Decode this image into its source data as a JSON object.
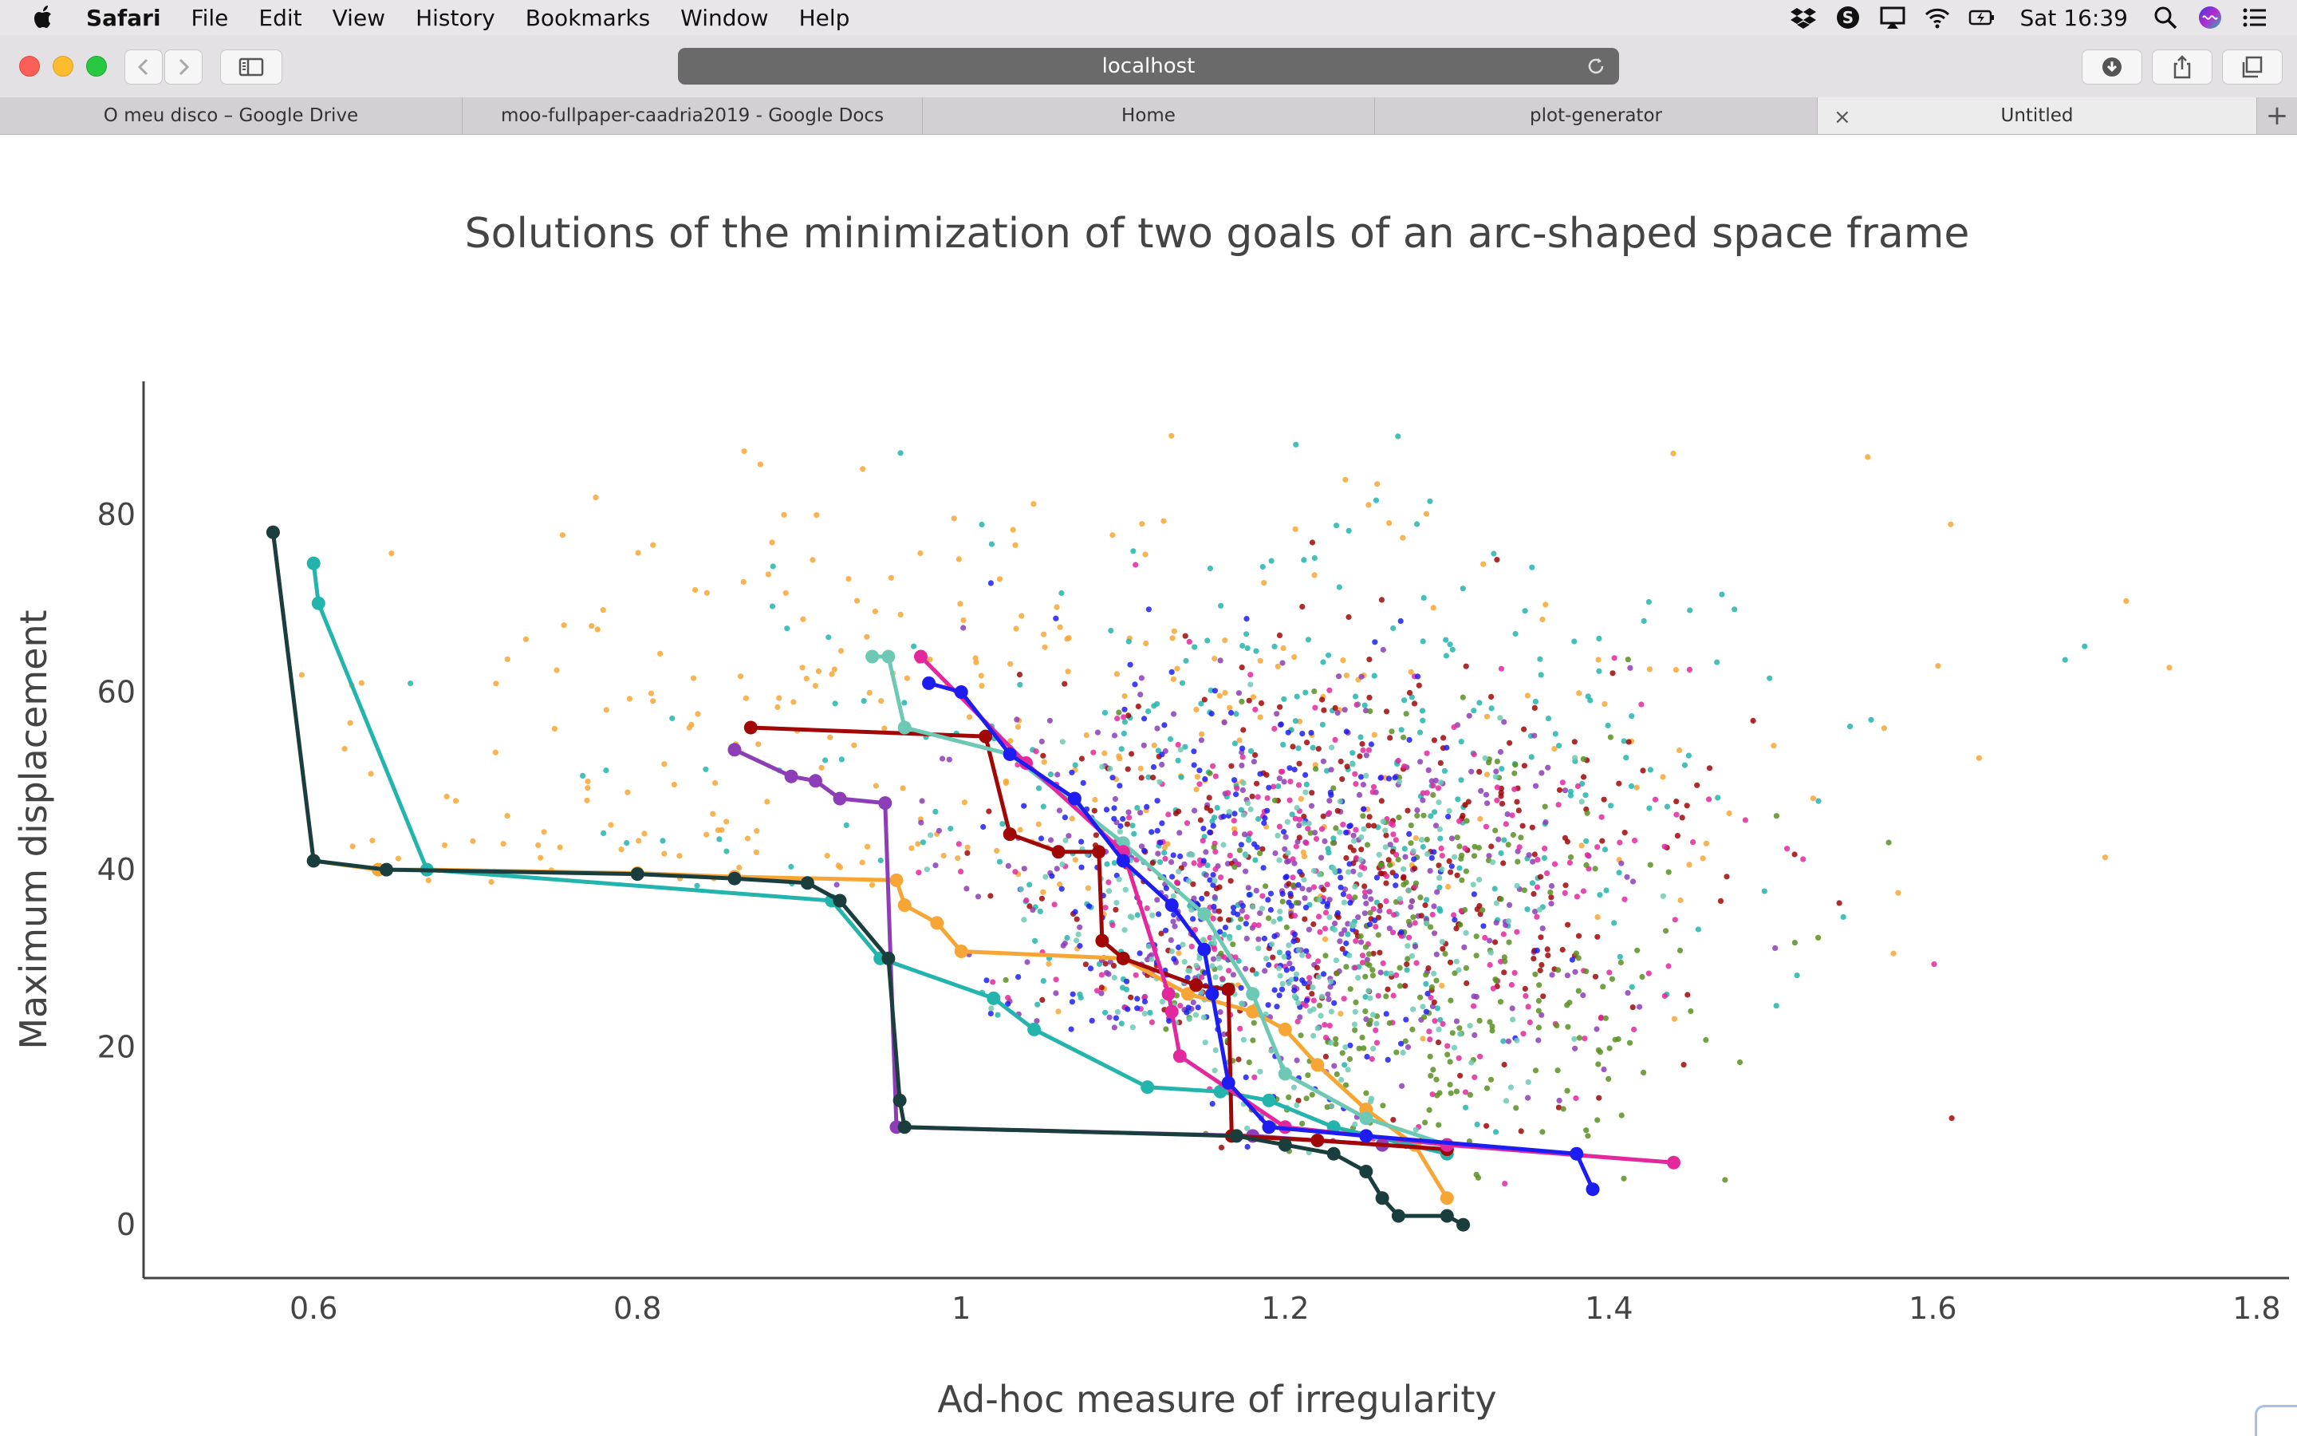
{
  "menubar": {
    "app": "Safari",
    "items": [
      "File",
      "Edit",
      "View",
      "History",
      "Bookmarks",
      "Window",
      "Help"
    ],
    "clock": "Sat 16:39",
    "status_icons": [
      "dropbox-icon",
      "skype-icon",
      "airplay-icon",
      "wifi-icon",
      "battery-icon",
      "spotlight-icon",
      "siri-icon",
      "notification-center-icon"
    ]
  },
  "toolbar": {
    "address": "localhost"
  },
  "tabs": [
    {
      "label": "O meu disco – Google Drive"
    },
    {
      "label": "moo-fullpaper-caadria2019 - Google Docs"
    },
    {
      "label": "Home"
    },
    {
      "label": "plot-generator"
    },
    {
      "label": "Untitled"
    }
  ],
  "chart_data": {
    "type": "scatter",
    "title": "Solutions of the minimization of two goals of an arc-shaped space frame",
    "xlabel": "Ad-hoc measure of irregularity",
    "ylabel": "Maximum displacement",
    "xlim": [
      0.495,
      1.82
    ],
    "ylim": [
      -6,
      95
    ],
    "xticks": [
      "0.6",
      "0.8",
      "1",
      "1.2",
      "1.4",
      "1.6",
      "1.8"
    ],
    "yticks": [
      "0",
      "20",
      "40",
      "60",
      "80"
    ],
    "grid": false,
    "legend": "none",
    "lines": [
      {
        "color": "#f7a635",
        "points": [
          [
            0.575,
            78
          ],
          [
            0.6,
            41
          ],
          [
            0.64,
            40
          ],
          [
            0.67,
            40
          ],
          [
            0.8,
            39.6
          ],
          [
            0.86,
            39.2
          ],
          [
            0.96,
            38.8
          ],
          [
            0.965,
            36
          ],
          [
            0.985,
            34
          ],
          [
            1.0,
            30.8
          ],
          [
            1.1,
            30
          ],
          [
            1.14,
            26
          ],
          [
            1.18,
            24
          ],
          [
            1.2,
            22
          ],
          [
            1.22,
            18
          ],
          [
            1.25,
            13
          ],
          [
            1.28,
            9
          ],
          [
            1.3,
            3
          ]
        ]
      },
      {
        "color": "#23b5ad",
        "points": [
          [
            0.6,
            74.5
          ],
          [
            0.603,
            70
          ],
          [
            0.67,
            40
          ],
          [
            0.92,
            36.5
          ],
          [
            0.95,
            30
          ],
          [
            1.02,
            25.5
          ],
          [
            1.045,
            22
          ],
          [
            1.115,
            15.5
          ],
          [
            1.16,
            15
          ],
          [
            1.19,
            14
          ],
          [
            1.23,
            11
          ],
          [
            1.3,
            8
          ]
        ]
      },
      {
        "color": "#8c3db7",
        "points": [
          [
            0.86,
            53.5
          ],
          [
            0.895,
            50.5
          ],
          [
            0.91,
            50
          ],
          [
            0.925,
            48
          ],
          [
            0.953,
            47.5
          ],
          [
            0.96,
            11
          ],
          [
            1.18,
            10
          ],
          [
            1.26,
            9
          ]
        ]
      },
      {
        "color": "#a00707",
        "points": [
          [
            0.87,
            56
          ],
          [
            1.015,
            55
          ],
          [
            1.03,
            44
          ],
          [
            1.06,
            42
          ],
          [
            1.085,
            42
          ],
          [
            1.087,
            32
          ],
          [
            1.1,
            30
          ],
          [
            1.145,
            27
          ],
          [
            1.165,
            26.5
          ],
          [
            1.167,
            10
          ],
          [
            1.22,
            9.5
          ],
          [
            1.3,
            8.5
          ]
        ]
      },
      {
        "color": "#6dc9b4",
        "points": [
          [
            0.945,
            64
          ],
          [
            0.955,
            64
          ],
          [
            0.965,
            56
          ],
          [
            1.03,
            53
          ],
          [
            1.1,
            43
          ],
          [
            1.15,
            35
          ],
          [
            1.18,
            26
          ],
          [
            1.2,
            17
          ],
          [
            1.25,
            12
          ],
          [
            1.3,
            9
          ]
        ]
      },
      {
        "color": "#e3289e",
        "points": [
          [
            0.975,
            64
          ],
          [
            1.04,
            52
          ],
          [
            1.1,
            42
          ],
          [
            1.128,
            26
          ],
          [
            1.13,
            24
          ],
          [
            1.135,
            19
          ],
          [
            1.2,
            11
          ],
          [
            1.3,
            9
          ],
          [
            1.44,
            7
          ]
        ]
      },
      {
        "color": "#1d1df2",
        "points": [
          [
            0.98,
            61
          ],
          [
            1.0,
            60
          ],
          [
            1.03,
            53
          ],
          [
            1.07,
            48
          ],
          [
            1.1,
            41
          ],
          [
            1.13,
            36
          ],
          [
            1.15,
            31
          ],
          [
            1.155,
            26
          ],
          [
            1.165,
            16
          ],
          [
            1.19,
            11
          ],
          [
            1.25,
            10
          ],
          [
            1.38,
            8
          ],
          [
            1.39,
            4
          ]
        ]
      },
      {
        "color": "#1a3d3d",
        "points": [
          [
            0.575,
            78
          ],
          [
            0.6,
            41
          ],
          [
            0.645,
            40
          ],
          [
            0.8,
            39.5
          ],
          [
            0.86,
            39
          ],
          [
            0.905,
            38.5
          ],
          [
            0.925,
            36.5
          ],
          [
            0.955,
            30
          ],
          [
            0.962,
            14
          ],
          [
            0.965,
            11
          ],
          [
            1.17,
            10
          ],
          [
            1.2,
            9
          ],
          [
            1.23,
            8
          ],
          [
            1.25,
            6
          ],
          [
            1.26,
            3
          ],
          [
            1.27,
            1
          ],
          [
            1.3,
            1
          ],
          [
            1.31,
            0
          ]
        ]
      }
    ],
    "point_clouds": [
      {
        "color": "#f7a635",
        "count": 340,
        "cx": 1.02,
        "cy": 56,
        "sx": 0.24,
        "sy": 17
      },
      {
        "color": "#23b5ad",
        "count": 340,
        "cx": 1.2,
        "cy": 48,
        "sx": 0.17,
        "sy": 15
      },
      {
        "color": "#8c3db7",
        "count": 320,
        "cx": 1.2,
        "cy": 38,
        "sx": 0.1,
        "sy": 12
      },
      {
        "color": "#a00707",
        "count": 300,
        "cx": 1.25,
        "cy": 40,
        "sx": 0.1,
        "sy": 13
      },
      {
        "color": "#e3289e",
        "count": 300,
        "cx": 1.24,
        "cy": 38,
        "sx": 0.1,
        "sy": 13
      },
      {
        "color": "#5b8f22",
        "count": 280,
        "cx": 1.3,
        "cy": 28,
        "sx": 0.08,
        "sy": 14
      },
      {
        "color": "#1d1df2",
        "count": 260,
        "cx": 1.17,
        "cy": 36,
        "sx": 0.07,
        "sy": 12
      },
      {
        "color": "#6dc9b4",
        "count": 240,
        "cx": 1.2,
        "cy": 30,
        "sx": 0.08,
        "sy": 12
      }
    ]
  }
}
